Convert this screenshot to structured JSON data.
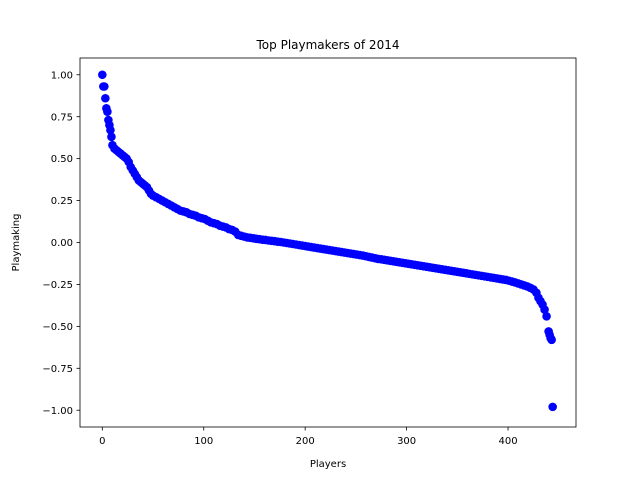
{
  "chart_data": {
    "type": "scatter",
    "title": "Top Playmakers of 2014",
    "xlabel": "Players",
    "ylabel": "Playmaking",
    "xlim": [
      -22,
      467
    ],
    "ylim": [
      -1.1,
      1.1
    ],
    "grid": false,
    "legend": "none",
    "marker_color": "#0000ff",
    "x_ticks": [
      {
        "value": 0,
        "label": "0"
      },
      {
        "value": 100,
        "label": "100"
      },
      {
        "value": 200,
        "label": "200"
      },
      {
        "value": 300,
        "label": "300"
      },
      {
        "value": 400,
        "label": "400"
      }
    ],
    "y_ticks": [
      {
        "value": 1.0,
        "label": "1.00"
      },
      {
        "value": 0.75,
        "label": "0.75"
      },
      {
        "value": 0.5,
        "label": "0.50"
      },
      {
        "value": 0.25,
        "label": "0.25"
      },
      {
        "value": 0.0,
        "label": "0.00"
      },
      {
        "value": -0.25,
        "label": "−0.25"
      },
      {
        "value": -0.5,
        "label": "−0.50"
      },
      {
        "value": -0.75,
        "label": "−0.75"
      },
      {
        "value": -1.0,
        "label": "−1.00"
      }
    ],
    "points": [
      [
        0,
        1.0
      ],
      [
        1,
        0.93
      ],
      [
        2,
        0.93
      ],
      [
        3,
        0.86
      ],
      [
        4,
        0.8
      ],
      [
        5,
        0.78
      ],
      [
        6,
        0.73
      ],
      [
        7,
        0.7
      ],
      [
        8,
        0.67
      ],
      [
        9,
        0.63
      ],
      [
        10,
        0.58
      ],
      [
        12,
        0.56
      ],
      [
        14,
        0.55
      ],
      [
        16,
        0.54
      ],
      [
        18,
        0.53
      ],
      [
        20,
        0.52
      ],
      [
        22,
        0.51
      ],
      [
        24,
        0.5
      ],
      [
        26,
        0.48
      ],
      [
        28,
        0.45
      ],
      [
        30,
        0.43
      ],
      [
        32,
        0.41
      ],
      [
        34,
        0.39
      ],
      [
        36,
        0.37
      ],
      [
        38,
        0.36
      ],
      [
        40,
        0.35
      ],
      [
        42,
        0.34
      ],
      [
        44,
        0.33
      ],
      [
        46,
        0.31
      ],
      [
        48,
        0.29
      ],
      [
        50,
        0.28
      ],
      [
        53,
        0.27
      ],
      [
        56,
        0.26
      ],
      [
        59,
        0.25
      ],
      [
        62,
        0.24
      ],
      [
        65,
        0.23
      ],
      [
        68,
        0.22
      ],
      [
        71,
        0.21
      ],
      [
        74,
        0.2
      ],
      [
        77,
        0.19
      ],
      [
        80,
        0.185
      ],
      [
        83,
        0.18
      ],
      [
        86,
        0.17
      ],
      [
        89,
        0.165
      ],
      [
        92,
        0.16
      ],
      [
        95,
        0.15
      ],
      [
        98,
        0.145
      ],
      [
        101,
        0.14
      ],
      [
        104,
        0.13
      ],
      [
        107,
        0.12
      ],
      [
        110,
        0.115
      ],
      [
        113,
        0.11
      ],
      [
        116,
        0.1
      ],
      [
        119,
        0.095
      ],
      [
        122,
        0.09
      ],
      [
        125,
        0.08
      ],
      [
        128,
        0.075
      ],
      [
        131,
        0.065
      ],
      [
        134,
        0.045
      ],
      [
        137,
        0.04
      ],
      [
        140,
        0.035
      ],
      [
        143,
        0.03
      ],
      [
        146,
        0.028
      ],
      [
        149,
        0.025
      ],
      [
        152,
        0.022
      ],
      [
        155,
        0.02
      ],
      [
        158,
        0.017
      ],
      [
        161,
        0.015
      ],
      [
        164,
        0.012
      ],
      [
        167,
        0.01
      ],
      [
        170,
        0.008
      ],
      [
        173,
        0.005
      ],
      [
        176,
        0.003
      ],
      [
        179,
        0.0
      ],
      [
        182,
        -0.003
      ],
      [
        185,
        -0.006
      ],
      [
        188,
        -0.009
      ],
      [
        191,
        -0.012
      ],
      [
        194,
        -0.015
      ],
      [
        197,
        -0.018
      ],
      [
        200,
        -0.021
      ],
      [
        203,
        -0.024
      ],
      [
        206,
        -0.027
      ],
      [
        209,
        -0.03
      ],
      [
        212,
        -0.033
      ],
      [
        215,
        -0.036
      ],
      [
        218,
        -0.039
      ],
      [
        221,
        -0.042
      ],
      [
        224,
        -0.045
      ],
      [
        227,
        -0.048
      ],
      [
        230,
        -0.051
      ],
      [
        233,
        -0.054
      ],
      [
        236,
        -0.057
      ],
      [
        239,
        -0.06
      ],
      [
        242,
        -0.063
      ],
      [
        245,
        -0.066
      ],
      [
        248,
        -0.069
      ],
      [
        251,
        -0.072
      ],
      [
        254,
        -0.075
      ],
      [
        257,
        -0.078
      ],
      [
        260,
        -0.082
      ],
      [
        263,
        -0.086
      ],
      [
        266,
        -0.09
      ],
      [
        269,
        -0.094
      ],
      [
        272,
        -0.098
      ],
      [
        275,
        -0.1
      ],
      [
        278,
        -0.103
      ],
      [
        281,
        -0.106
      ],
      [
        284,
        -0.109
      ],
      [
        287,
        -0.112
      ],
      [
        290,
        -0.115
      ],
      [
        293,
        -0.118
      ],
      [
        296,
        -0.121
      ],
      [
        299,
        -0.124
      ],
      [
        302,
        -0.127
      ],
      [
        305,
        -0.13
      ],
      [
        308,
        -0.133
      ],
      [
        311,
        -0.136
      ],
      [
        314,
        -0.139
      ],
      [
        317,
        -0.142
      ],
      [
        320,
        -0.145
      ],
      [
        323,
        -0.148
      ],
      [
        326,
        -0.151
      ],
      [
        329,
        -0.154
      ],
      [
        332,
        -0.157
      ],
      [
        335,
        -0.16
      ],
      [
        338,
        -0.163
      ],
      [
        341,
        -0.166
      ],
      [
        344,
        -0.169
      ],
      [
        347,
        -0.172
      ],
      [
        350,
        -0.175
      ],
      [
        353,
        -0.178
      ],
      [
        356,
        -0.181
      ],
      [
        359,
        -0.184
      ],
      [
        362,
        -0.187
      ],
      [
        365,
        -0.19
      ],
      [
        368,
        -0.193
      ],
      [
        371,
        -0.196
      ],
      [
        374,
        -0.199
      ],
      [
        377,
        -0.202
      ],
      [
        380,
        -0.205
      ],
      [
        383,
        -0.208
      ],
      [
        386,
        -0.211
      ],
      [
        389,
        -0.214
      ],
      [
        392,
        -0.217
      ],
      [
        395,
        -0.22
      ],
      [
        398,
        -0.223
      ],
      [
        401,
        -0.228
      ],
      [
        404,
        -0.233
      ],
      [
        407,
        -0.238
      ],
      [
        410,
        -0.244
      ],
      [
        413,
        -0.25
      ],
      [
        416,
        -0.256
      ],
      [
        419,
        -0.262
      ],
      [
        422,
        -0.27
      ],
      [
        425,
        -0.28
      ],
      [
        428,
        -0.3
      ],
      [
        430,
        -0.33
      ],
      [
        432,
        -0.35
      ],
      [
        434,
        -0.37
      ],
      [
        436,
        -0.4
      ],
      [
        438,
        -0.44
      ],
      [
        440,
        -0.53
      ],
      [
        441,
        -0.55
      ],
      [
        442,
        -0.57
      ],
      [
        443,
        -0.58
      ],
      [
        444,
        -0.98
      ]
    ]
  }
}
